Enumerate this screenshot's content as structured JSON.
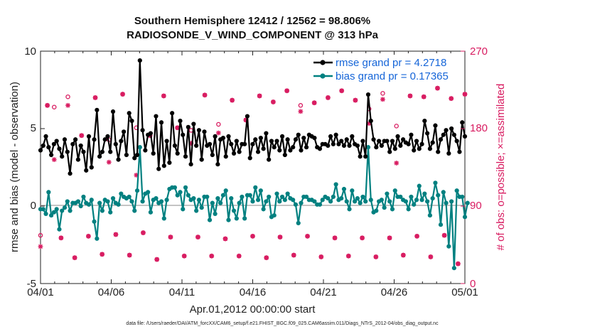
{
  "chart_data": {
    "type": "line",
    "title": "Southern Hemisphere 12412 / 12562 = 98.806%",
    "subtitle": "RADIOSONDE_V_WIND_COMPONENT @ 313 hPa",
    "xlabel": "Apr.01,2012 00:00:00 start",
    "ylabel": "rmse and bias (model - observation)",
    "ylabel_right": "# of obs: o=possible; ×=assimilated",
    "ylim": [
      -5,
      10
    ],
    "ylim_right": [
      0,
      270
    ],
    "x_ticks": [
      "04/01",
      "04/06",
      "04/11",
      "04/16",
      "04/21",
      "04/26",
      "05/01"
    ],
    "y_ticks": [
      "-5",
      "0",
      "5",
      "10"
    ],
    "y_ticks_right": [
      "0",
      "90",
      "180",
      "270"
    ],
    "footnote": "data file: /Users/raeder/DAI/ATM_forcXX/CAM6_setup/f.e21.FHIST_BGC.f09_025.CAM6assim.011/Diags_NTrS_2012-04/obs_diag_output.nc",
    "colors": {
      "rmse": "#000000",
      "bias": "#008080",
      "obs": "#d81b60",
      "zero": "#a0a0a0",
      "legend": "#1565d8"
    },
    "series": [
      {
        "name": "rmse",
        "legend": "rmse grand pr = 4.2718",
        "values": [
          3.6,
          3.9,
          4.5,
          3.8,
          3.3,
          4.0,
          4.2,
          3.7,
          3.2,
          4.3,
          3.5,
          2.1,
          4.0,
          4.3,
          3.0,
          3.9,
          3.5,
          2.3,
          4.5,
          2.5,
          4.3,
          6.2,
          3.2,
          3.5,
          4.3,
          4.5,
          3.5,
          6.1,
          4.0,
          3.0,
          4.2,
          4.8,
          3.3,
          6.0,
          5.5,
          3.1,
          3.3,
          9.4,
          4.9,
          3.6,
          4.6,
          4.7,
          3.4,
          5.8,
          2.4,
          5.4,
          2.6,
          4.2,
          2.8,
          6.0,
          3.9,
          3.4,
          5.5,
          4.6,
          3.2,
          5.1,
          2.7,
          5.3,
          3.9,
          4.9,
          3.0,
          4.8,
          3.9,
          4.0,
          3.3,
          4.5,
          2.7,
          4.3,
          4.4,
          3.2,
          4.5,
          4.0,
          3.4,
          4.2,
          3.5,
          4.0,
          4.0,
          5.8,
          3.1,
          4.0,
          4.3,
          3.5,
          4.4,
          3.7,
          4.7,
          3.0,
          4.2,
          3.8,
          4.2,
          3.6,
          4.5,
          3.3,
          4.3,
          3.6,
          3.8,
          4.3,
          4.6,
          3.6,
          4.4,
          3.8,
          4.6,
          4.5,
          4.4,
          3.8,
          3.7,
          4.0,
          4.0,
          3.9,
          4.5,
          4.0,
          4.6,
          4.0,
          4.2,
          3.9,
          4.3,
          3.9,
          4.5,
          4.0,
          3.9,
          3.2,
          4.2,
          3.2,
          7.2,
          5.5,
          4.3,
          3.8,
          4.2,
          3.9,
          4.2,
          4.2,
          3.5,
          4.2,
          3.7,
          4.5,
          3.9,
          4.3,
          4.1,
          4.0,
          4.6,
          3.6,
          4.2,
          3.7,
          4.0,
          5.5,
          4.7,
          3.7,
          4.1,
          5.2,
          3.5,
          4.3,
          4.6,
          4.9,
          3.4,
          5.0,
          4.6,
          4.2,
          3.5,
          5.4,
          4.5
        ]
      },
      {
        "name": "bias",
        "legend": "bias grand pr = 0.17365",
        "values": [
          -0.2,
          -0.2,
          -0.5,
          0.9,
          -0.6,
          -0.4,
          -0.2,
          -1.5,
          -0.3,
          -0.1,
          0.3,
          -0.3,
          0.2,
          0.2,
          0.3,
          0.0,
          0.6,
          0.2,
          0.1,
          0.4,
          -1.0,
          -2.1,
          0.2,
          -0.3,
          0.4,
          0.3,
          -0.4,
          0.5,
          0.2,
          0.1,
          0.8,
          0.6,
          0.5,
          0.6,
          0.3,
          -0.3,
          1.0,
          3.8,
          0.3,
          0.8,
          0.9,
          -0.4,
          0.4,
          0.5,
          0.2,
          0.3,
          -0.8,
          0.4,
          1.1,
          1.2,
          1.2,
          0.7,
          0.9,
          -0.2,
          1.2,
          0.7,
          0.4,
          0.5,
          -0.3,
          0.4,
          -0.1,
          0.6,
          0.6,
          -0.9,
          0.2,
          -0.5,
          0.5,
          0.2,
          0.7,
          1.0,
          -0.9,
          0.5,
          -0.3,
          -0.8,
          0.2,
          0.6,
          -0.8,
          0.7,
          0.7,
          0.3,
          1.2,
          0.4,
          1.0,
          -0.2,
          0.3,
          0.6,
          -0.7,
          -0.6,
          0.8,
          0.3,
          0.6,
          0.4,
          0.8,
          0.5,
          0.4,
          0.1,
          -1.1,
          0.2,
          0.6,
          0.6,
          0.4,
          0.4,
          0.3,
          0.1,
          0.1,
          0.4,
          0.6,
          0.5,
          0.3,
          0.6,
          1.4,
          0.4,
          0.5,
          1.1,
          0.3,
          -0.2,
          1.0,
          0.3,
          0.5,
          0.2,
          0.6,
          0.3,
          3.8,
          0.4,
          -0.4,
          -0.3,
          0.3,
          0.4,
          -0.1,
          0.8,
          0.3,
          -0.2,
          1.0,
          0.6,
          0.6,
          0.4,
          0.3,
          -0.2,
          0.6,
          0.1,
          0.4,
          1.3,
          0.4,
          0.8,
          0.3,
          -0.6,
          0.5,
          1.5,
          0.7,
          -1.2,
          0.9,
          0.2,
          -2.6,
          0.3,
          -4.0,
          1.0,
          0.6,
          0.6,
          -0.7,
          0.2
        ]
      }
    ],
    "obs_possible_odd": [
      56,
      205,
      217,
      172,
      216,
      167,
      220,
      181,
      172,
      218,
      181,
      178,
      219,
      185,
      213,
      190,
      218,
      211,
      224,
      207,
      210,
      216,
      224,
      213,
      203,
      221,
      183,
      218,
      217,
      227,
      215,
      220
    ],
    "obs_assimilated_odd": [
      43,
      144,
      207,
      172,
      216,
      141,
      220,
      126,
      172,
      218,
      181,
      163,
      219,
      175,
      213,
      190,
      218,
      211,
      224,
      200,
      210,
      216,
      224,
      213,
      186,
      214,
      140,
      218,
      217,
      227,
      215,
      220
    ],
    "obs_possible_even": [
      207,
      53,
      30,
      55,
      34,
      57,
      33,
      59,
      28,
      54,
      32,
      54,
      32,
      52,
      32,
      55,
      30,
      54,
      33,
      55,
      31,
      53,
      32,
      53,
      31,
      53,
      33,
      55,
      31,
      56,
      23,
      53
    ],
    "obs_assimilated_even": [
      207,
      53,
      30,
      55,
      34,
      57,
      33,
      59,
      28,
      54,
      32,
      54,
      32,
      52,
      32,
      55,
      30,
      54,
      33,
      55,
      31,
      53,
      32,
      53,
      31,
      53,
      33,
      55,
      31,
      56,
      23,
      53
    ]
  }
}
